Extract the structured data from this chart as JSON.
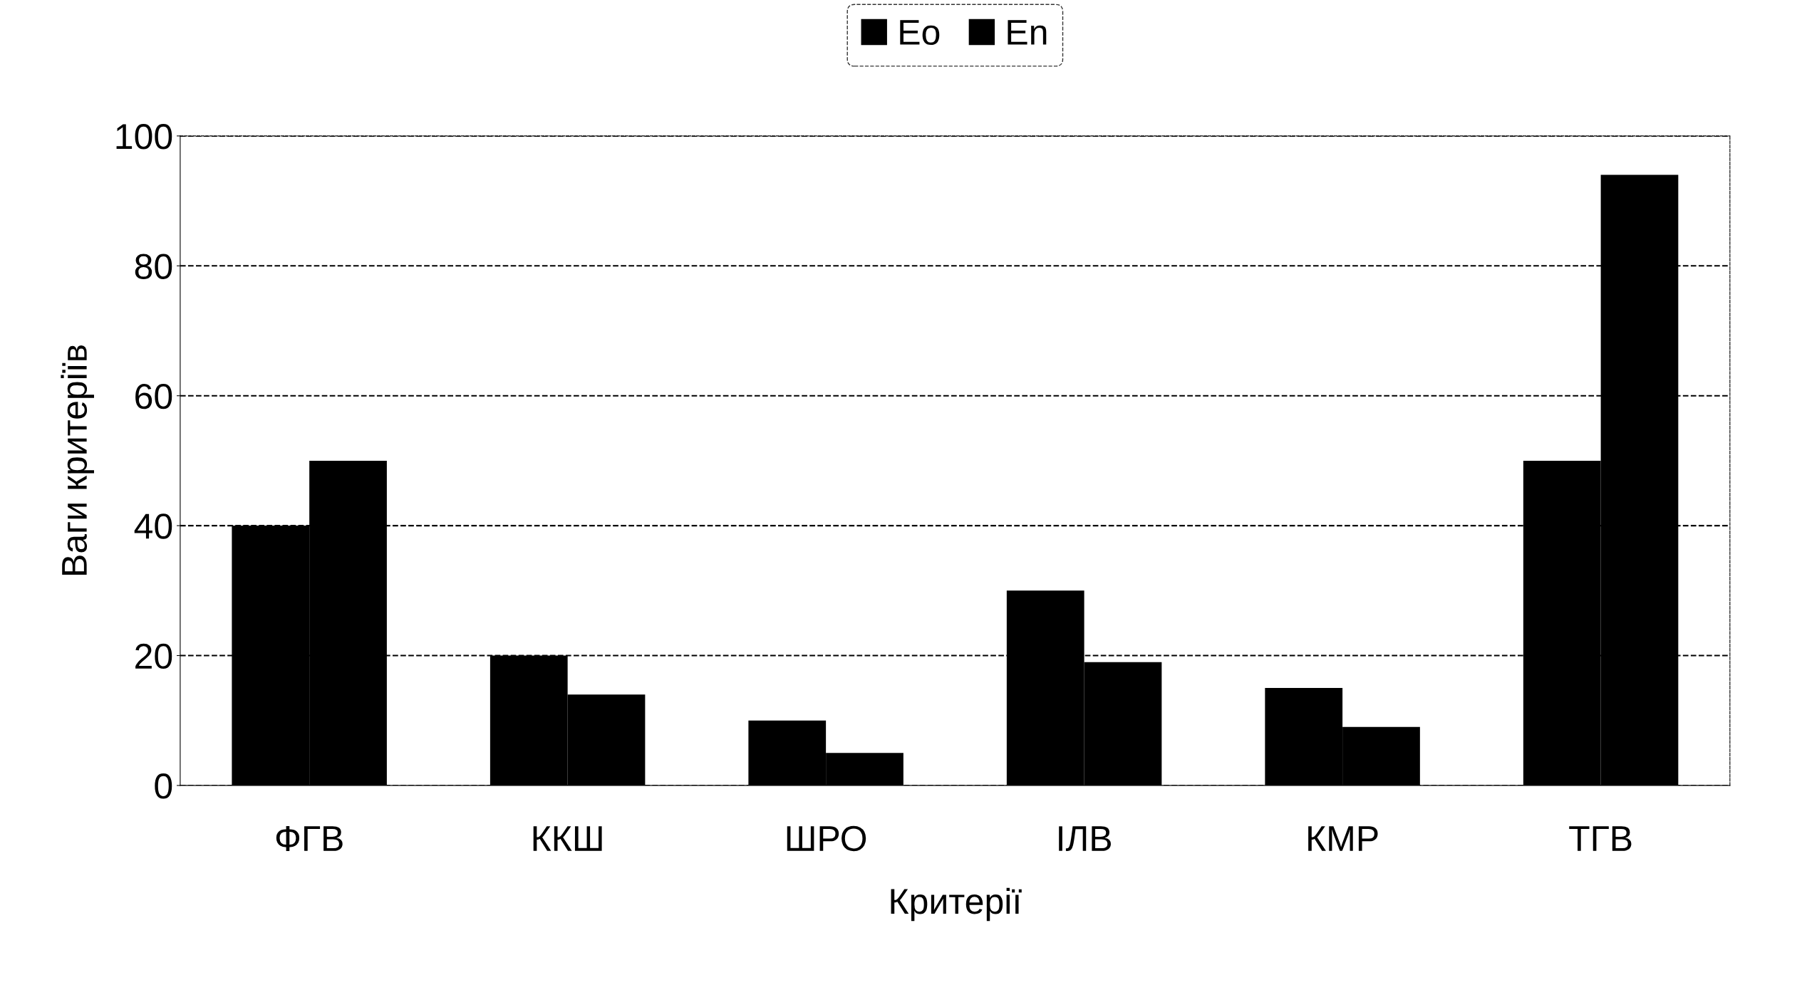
{
  "chart_data": {
    "type": "bar",
    "xlabel": "Критерії",
    "ylabel": "Ваги критеріїв",
    "categories": [
      "ФГВ",
      "ККШ",
      "ШРО",
      "ІЛВ",
      "КМР",
      "ТГВ"
    ],
    "series": [
      {
        "name": "Eo",
        "color": "#000000",
        "values": [
          40,
          20,
          10,
          30,
          15,
          50
        ]
      },
      {
        "name": "En",
        "color": "#000000",
        "values": [
          50,
          14,
          5,
          19,
          9,
          94
        ]
      }
    ],
    "ylim": [
      0,
      100
    ],
    "yticks": [
      0,
      20,
      40,
      60,
      80,
      100
    ],
    "grid": "y",
    "legend": "top"
  }
}
